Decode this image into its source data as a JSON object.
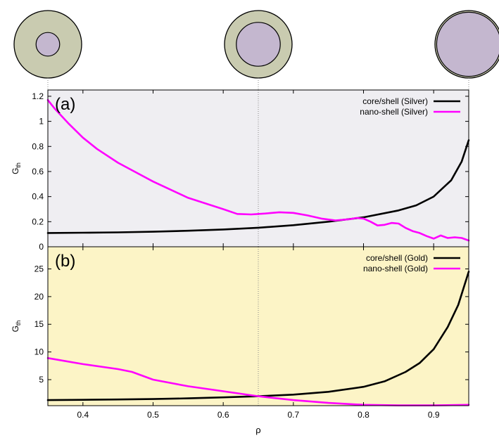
{
  "figure": {
    "xlabel": "ρ",
    "x_ticks": [
      "0.4",
      "0.5",
      "0.6",
      "0.7",
      "0.8",
      "0.9"
    ],
    "guide_lines_x": [
      0.35,
      0.65,
      0.95
    ],
    "shell_color": "#c9cbb0",
    "core_color": "#c4b7cf"
  },
  "schematics": [
    {
      "name": "core-shell-thick-shell",
      "rho": 0.35,
      "core_ratio": 0.35
    },
    {
      "name": "core-shell-mid-shell",
      "rho": 0.65,
      "core_ratio": 0.65
    },
    {
      "name": "core-shell-thin-shell",
      "rho": 0.95,
      "core_ratio": 0.95
    }
  ],
  "chart_data": [
    {
      "type": "line",
      "panel_label": "(a)",
      "background": "#efeef2",
      "ylabel": "G",
      "ylabel_sub": "th",
      "xlim": [
        0.35,
        0.95
      ],
      "ylim": [
        0,
        1.25
      ],
      "y_ticks": [
        "0",
        "0.2",
        "0.4",
        "0.6",
        "0.8",
        "1",
        "1.2"
      ],
      "legend_position": "top-right",
      "series": [
        {
          "name": "core/shell (Silver)",
          "color": "#000000",
          "x": [
            0.35,
            0.4,
            0.45,
            0.5,
            0.55,
            0.6,
            0.65,
            0.7,
            0.75,
            0.8,
            0.85,
            0.875,
            0.9,
            0.925,
            0.94,
            0.95
          ],
          "y": [
            0.11,
            0.112,
            0.115,
            0.12,
            0.128,
            0.138,
            0.152,
            0.172,
            0.2,
            0.235,
            0.29,
            0.33,
            0.4,
            0.53,
            0.68,
            0.85
          ]
        },
        {
          "name": "nano-shell (Silver)",
          "color": "#ff00ff",
          "x": [
            0.35,
            0.36,
            0.38,
            0.4,
            0.42,
            0.45,
            0.5,
            0.55,
            0.6,
            0.62,
            0.64,
            0.66,
            0.68,
            0.7,
            0.72,
            0.74,
            0.76,
            0.78,
            0.79,
            0.8,
            0.81,
            0.82,
            0.83,
            0.84,
            0.85,
            0.86,
            0.87,
            0.88,
            0.89,
            0.9,
            0.91,
            0.92,
            0.93,
            0.94,
            0.95
          ],
          "y": [
            1.17,
            1.1,
            0.98,
            0.87,
            0.78,
            0.67,
            0.52,
            0.39,
            0.3,
            0.262,
            0.258,
            0.265,
            0.275,
            0.27,
            0.25,
            0.225,
            0.21,
            0.22,
            0.23,
            0.225,
            0.2,
            0.17,
            0.175,
            0.19,
            0.185,
            0.15,
            0.125,
            0.11,
            0.085,
            0.065,
            0.09,
            0.07,
            0.075,
            0.07,
            0.05
          ]
        }
      ]
    },
    {
      "type": "line",
      "panel_label": "(b)",
      "background": "#fcf4c6",
      "ylabel": "G",
      "ylabel_sub": "th",
      "xlim": [
        0.35,
        0.95
      ],
      "ylim": [
        0.3,
        29
      ],
      "y_ticks": [
        "5",
        "10",
        "15",
        "20",
        "25"
      ],
      "legend_position": "top-right",
      "series": [
        {
          "name": "core/shell (Gold)",
          "color": "#000000",
          "x": [
            0.35,
            0.4,
            0.45,
            0.5,
            0.55,
            0.6,
            0.65,
            0.7,
            0.75,
            0.8,
            0.83,
            0.86,
            0.88,
            0.9,
            0.92,
            0.935,
            0.95
          ],
          "y": [
            1.3,
            1.35,
            1.42,
            1.5,
            1.62,
            1.8,
            2.0,
            2.3,
            2.8,
            3.7,
            4.7,
            6.4,
            8.0,
            10.5,
            14.5,
            18.5,
            24.5
          ]
        },
        {
          "name": "nano-shell (Gold)",
          "color": "#ff00ff",
          "x": [
            0.35,
            0.4,
            0.45,
            0.47,
            0.5,
            0.55,
            0.6,
            0.65,
            0.7,
            0.75,
            0.8,
            0.85,
            0.9,
            0.95
          ],
          "y": [
            8.9,
            7.8,
            6.9,
            6.4,
            5.0,
            3.8,
            2.9,
            2.0,
            1.3,
            0.8,
            0.45,
            0.35,
            0.35,
            0.45
          ]
        }
      ]
    }
  ]
}
